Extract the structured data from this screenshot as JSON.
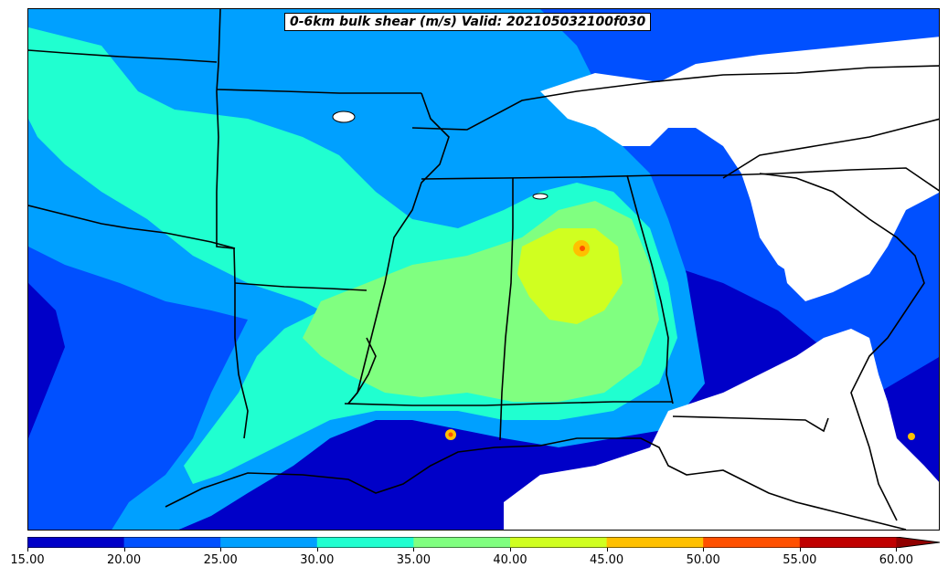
{
  "title": "0-6km bulk shear (m/s) Valid: 202105032100f030",
  "colorbar": {
    "ticks": [
      "15.00",
      "20.00",
      "25.00",
      "30.00",
      "35.00",
      "40.00",
      "45.00",
      "50.00",
      "55.00",
      "60.00"
    ],
    "colors": [
      "#0000c8",
      "#0050ff",
      "#00a0ff",
      "#20ffd0",
      "#80ff80",
      "#d0ff20",
      "#ffc000",
      "#ff5000",
      "#c00000",
      "#900000"
    ],
    "extend": "max"
  },
  "map": {
    "fill_colors": {
      "c15": "#0000c8",
      "c20": "#0050ff",
      "c25": "#00a0ff",
      "c30": "#20ffd0",
      "c35": "#80ff80",
      "c40": "#d0ff20",
      "c45": "#ffc000",
      "c50": "#ff5000",
      "nodata": "#ffffff"
    },
    "border_color": "#000000"
  }
}
